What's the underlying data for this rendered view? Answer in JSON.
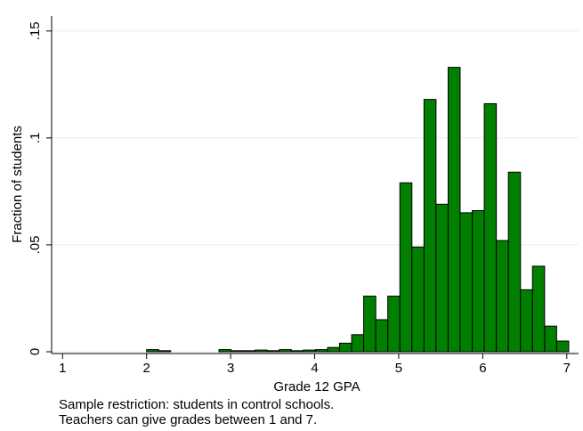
{
  "chart_data": {
    "type": "histogram",
    "xlabel": "Grade 12 GPA",
    "ylabel": "Fraction of students",
    "notes": [
      "Sample restriction: students in control schools.",
      "Teachers can give grades between 1 and 7."
    ],
    "color": "#007f00",
    "bins": [
      2.0,
      2.144,
      2.287,
      2.431,
      2.574,
      2.718,
      2.861,
      3.005,
      3.148,
      3.292,
      3.435,
      3.579,
      3.722,
      3.866,
      4.009,
      4.153,
      4.296,
      4.44,
      4.583,
      4.727,
      4.87,
      5.014,
      5.157,
      5.301,
      5.444,
      5.588,
      5.731,
      5.875,
      6.018,
      6.162,
      6.305,
      6.449,
      6.592,
      6.736,
      6.879,
      7.023
    ],
    "values": [
      0.001,
      0.0005,
      0,
      0,
      0,
      0,
      0.001,
      0.0005,
      0.0005,
      0.0008,
      0.0005,
      0.001,
      0.0005,
      0.0008,
      0.001,
      0.002,
      0.004,
      0.008,
      0.026,
      0.015,
      0.026,
      0.079,
      0.049,
      0.118,
      0.069,
      0.133,
      0.065,
      0.066,
      0.116,
      0.052,
      0.084,
      0.029,
      0.04,
      0.012,
      0.005
    ],
    "xlim": [
      0.87,
      7.14
    ],
    "ylim": [
      0,
      0.157
    ],
    "xticks": [
      1,
      2,
      3,
      4,
      5,
      6,
      7
    ],
    "yticks": [
      0,
      {
        "value": 0.05,
        "label": ".05"
      },
      {
        "value": 0.1,
        "label": ".1"
      },
      {
        "value": 0.15,
        "label": ".15"
      }
    ],
    "grid": true
  }
}
